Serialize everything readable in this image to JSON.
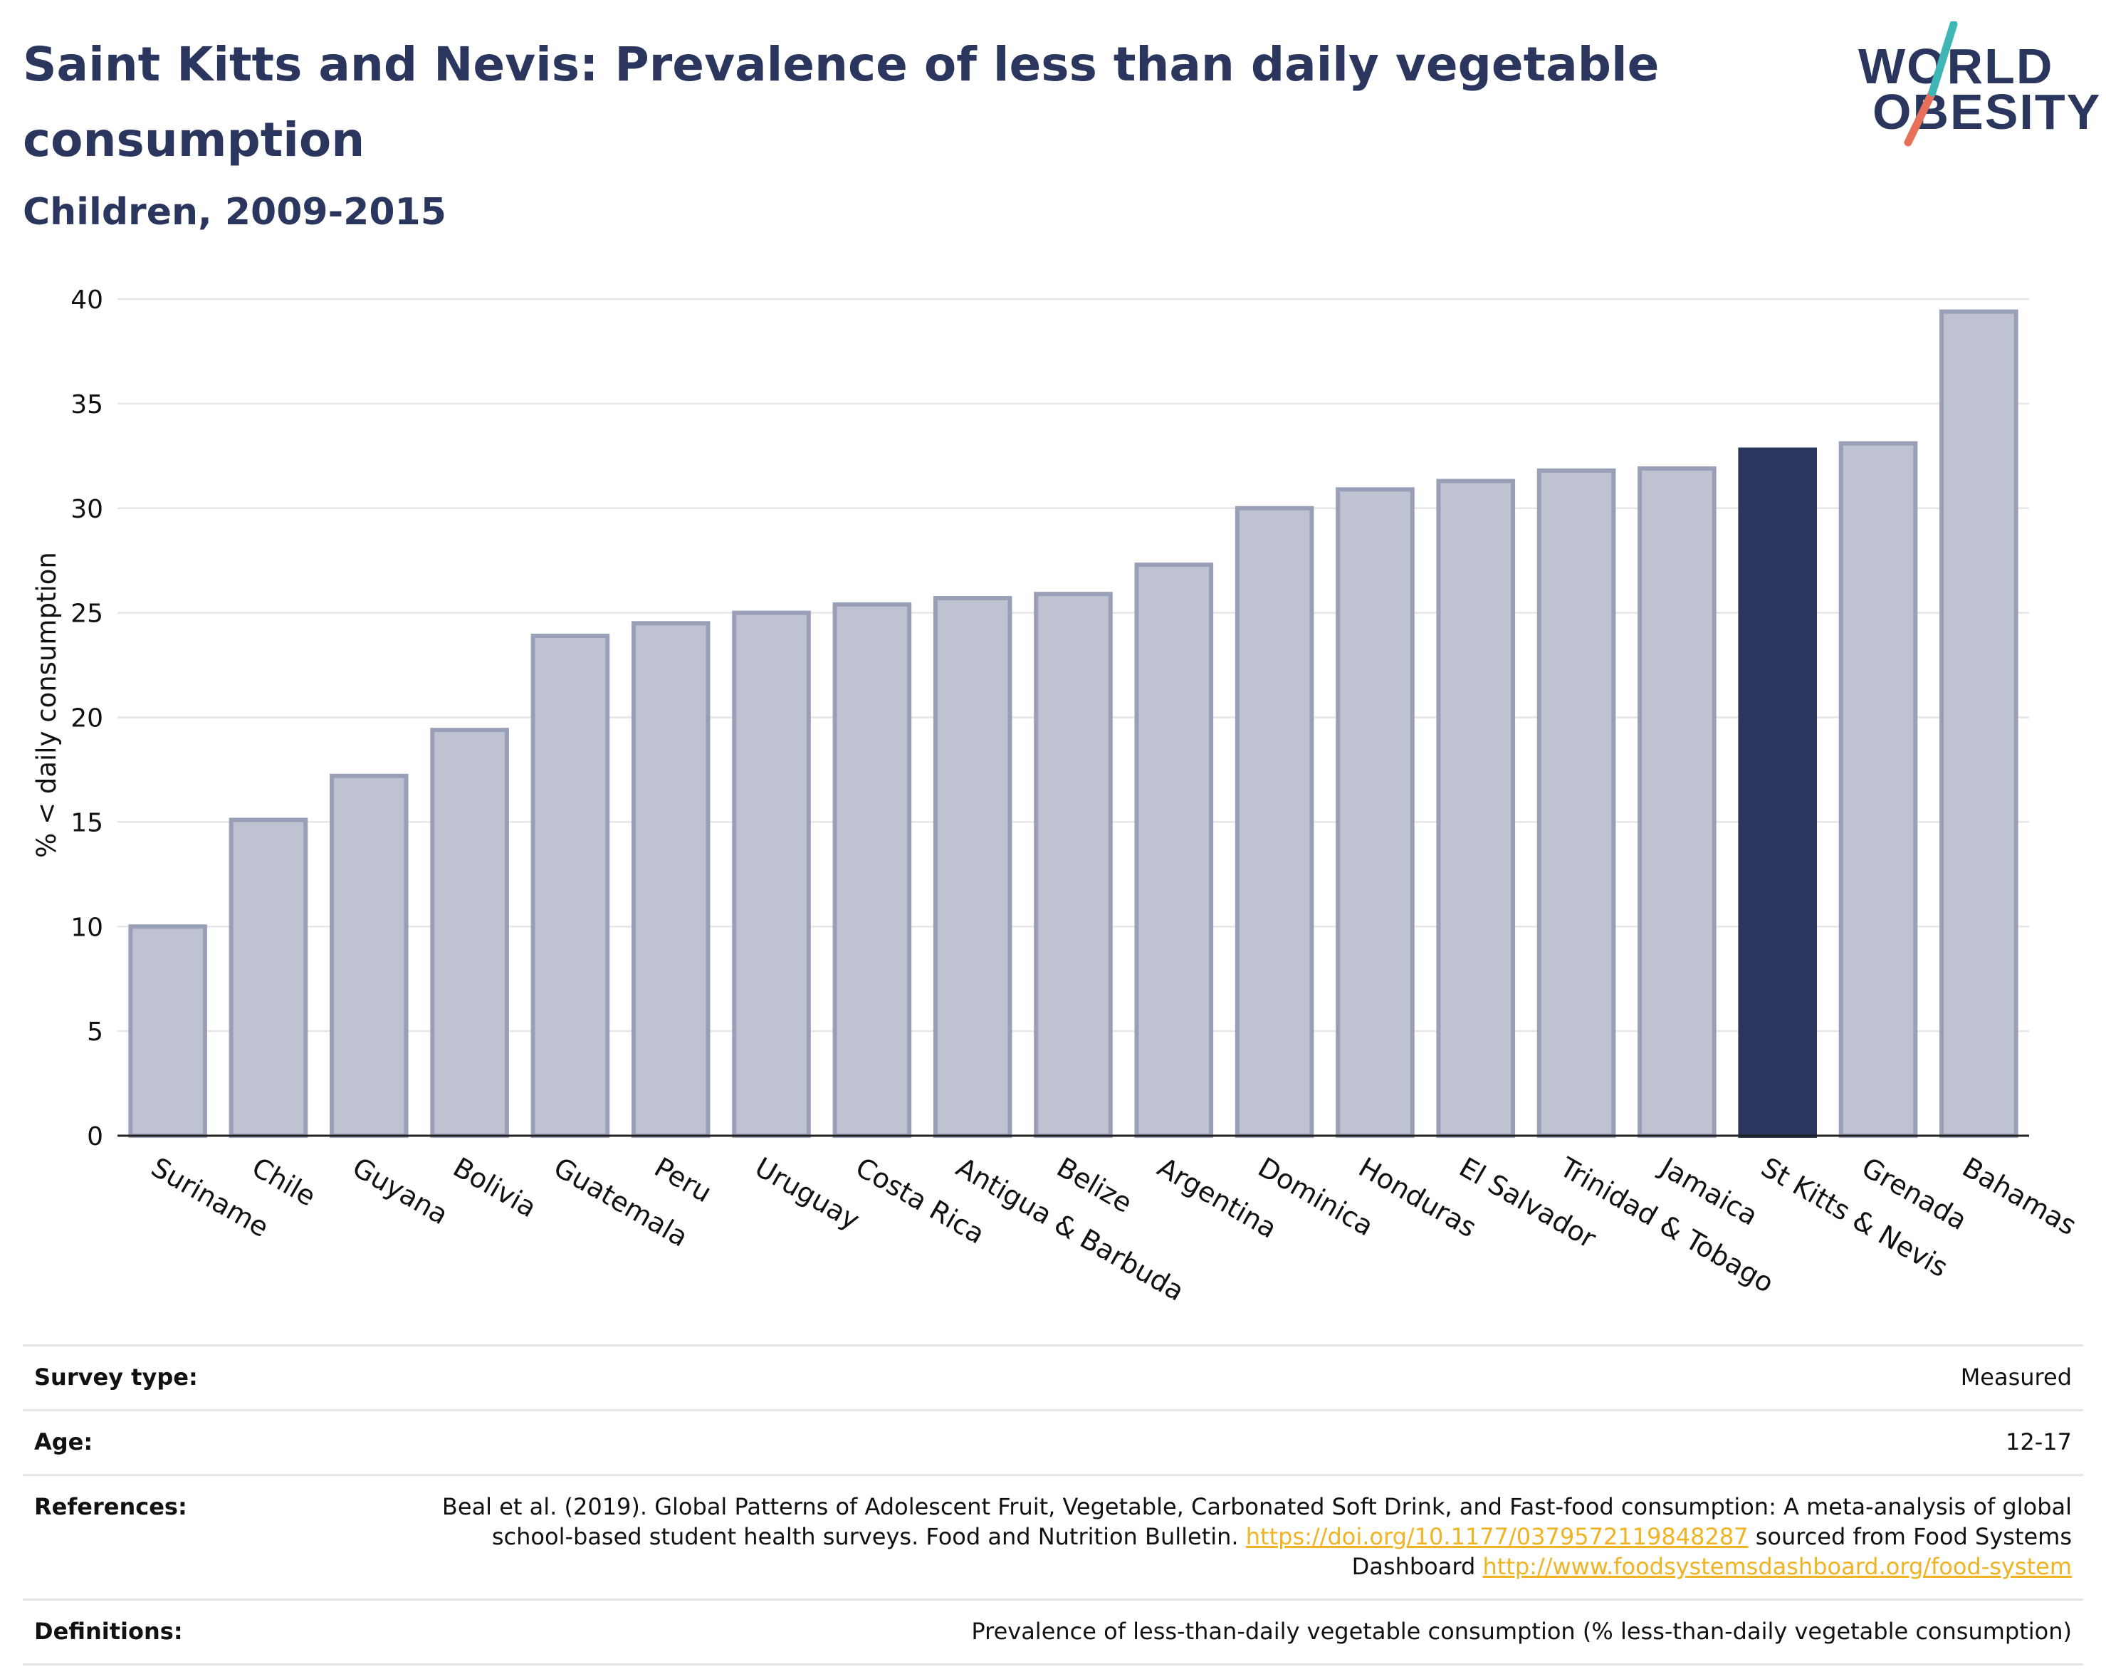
{
  "header": {
    "title": "Saint Kitts and Nevis: Prevalence of less than daily vegetable consumption",
    "subtitle": "Children, 2009-2015"
  },
  "logo": {
    "line1": "WORLD",
    "line2": "OBESITY",
    "accent_teal": "#3fb6b5",
    "accent_coral": "#e8705a"
  },
  "colors": {
    "bar_default": "#bfc2d0",
    "bar_stroke": "#9a9fb8",
    "bar_highlight": "#2a365e",
    "title": "#2a365e",
    "link": "#f0b323"
  },
  "chart_data": {
    "type": "bar",
    "title": "",
    "xlabel": "",
    "ylabel": "% < daily consumption",
    "ylim": [
      0,
      40
    ],
    "yticks": [
      0,
      5,
      10,
      15,
      20,
      25,
      30,
      35,
      40
    ],
    "grid": true,
    "highlight": "St Kitts & Nevis",
    "categories": [
      "Suriname",
      "Chile",
      "Guyana",
      "Bolivia",
      "Guatemala",
      "Peru",
      "Uruguay",
      "Costa Rica",
      "Antigua & Barbuda",
      "Belize",
      "Argentina",
      "Dominica",
      "Honduras",
      "El Salvador",
      "Trinidad & Tobago",
      "Jamaica",
      "St Kitts & Nevis",
      "Grenada",
      "Bahamas"
    ],
    "values": [
      10.0,
      15.1,
      17.2,
      19.4,
      23.9,
      24.5,
      25.0,
      25.4,
      25.7,
      25.9,
      27.3,
      30.0,
      30.9,
      31.3,
      31.8,
      31.9,
      32.8,
      33.1,
      39.4
    ]
  },
  "meta": {
    "survey_type": {
      "label": "Survey type:",
      "value": "Measured"
    },
    "age": {
      "label": "Age:",
      "value": "12-17"
    },
    "references": {
      "label": "References:",
      "text1": "Beal et al. (2019). Global Patterns of Adolescent Fruit, Vegetable, Carbonated Soft Drink, and Fast-food consumption: A meta-analysis of global school-based student health surveys. Food and Nutrition Bulletin. ",
      "link1": "https://doi.org/10.1177/0379572119848287",
      "text2": " sourced from Food Systems Dashboard ",
      "link2": "http://www.foodsystemsdashboard.org/food-system"
    },
    "definitions": {
      "label": "Definitions:",
      "value": "Prevalence of less-than-daily vegetable consumption (% less-than-daily vegetable consumption)"
    }
  }
}
